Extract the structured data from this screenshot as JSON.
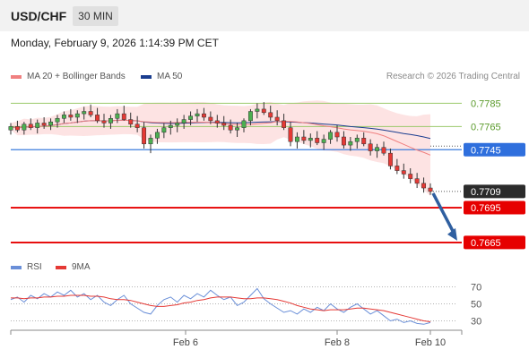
{
  "header": {
    "symbol": "USD/CHF",
    "timeframe": "30 MIN",
    "datetime": "Monday, February 9, 2026 1:14:39 PM CET"
  },
  "legend": {
    "ma20": "MA 20 + Bollinger Bands",
    "ma50": "MA 50",
    "credit": "Research © 2026 Trading Central"
  },
  "colors": {
    "up": "#4caf50",
    "down": "#e53935",
    "ma20": "#f08080",
    "ma50": "#1a3d8f",
    "band": "#fde0e0",
    "blue_line": "#3b7ddd",
    "red_line": "#e60000",
    "arrow": "#2f5fa0",
    "rsi": "#6a8fd8",
    "rsi_ma": "#e53935"
  },
  "chart_data": {
    "type": "candlestick",
    "ylim": [
      0.7658,
      0.78
    ],
    "levels": [
      {
        "value": "0.7785",
        "kind": "resistance"
      },
      {
        "value": "0.7765",
        "kind": "resistance"
      },
      {
        "value": "0.7745",
        "kind": "pivot"
      },
      {
        "value": "0.7709",
        "kind": "last"
      },
      {
        "value": "0.7695",
        "kind": "support"
      },
      {
        "value": "0.7665",
        "kind": "support"
      }
    ],
    "x_ticks": [
      "Feb 6",
      "Feb 8",
      "Feb 10"
    ],
    "candles": [
      [
        0.7762,
        0.7768,
        0.7758,
        0.7765
      ],
      [
        0.7765,
        0.777,
        0.776,
        0.7762
      ],
      [
        0.7762,
        0.7769,
        0.7758,
        0.7767
      ],
      [
        0.7767,
        0.7772,
        0.7762,
        0.7764
      ],
      [
        0.7764,
        0.7771,
        0.7759,
        0.7768
      ],
      [
        0.7768,
        0.7773,
        0.7763,
        0.7766
      ],
      [
        0.7766,
        0.7772,
        0.7762,
        0.7769
      ],
      [
        0.7769,
        0.7775,
        0.7764,
        0.7772
      ],
      [
        0.7772,
        0.7778,
        0.7768,
        0.7775
      ],
      [
        0.7775,
        0.778,
        0.777,
        0.7773
      ],
      [
        0.7773,
        0.7779,
        0.7768,
        0.7776
      ],
      [
        0.7776,
        0.7782,
        0.7771,
        0.7778
      ],
      [
        0.7778,
        0.7784,
        0.7773,
        0.7775
      ],
      [
        0.7775,
        0.7781,
        0.7768,
        0.777
      ],
      [
        0.777,
        0.7776,
        0.7764,
        0.7768
      ],
      [
        0.7768,
        0.7775,
        0.7763,
        0.7772
      ],
      [
        0.7772,
        0.778,
        0.7768,
        0.7776
      ],
      [
        0.7776,
        0.7783,
        0.777,
        0.7771
      ],
      [
        0.7771,
        0.7777,
        0.7764,
        0.7767
      ],
      [
        0.7767,
        0.7774,
        0.776,
        0.7764
      ],
      [
        0.7764,
        0.7769,
        0.7746,
        0.775
      ],
      [
        0.775,
        0.7758,
        0.7742,
        0.7755
      ],
      [
        0.7755,
        0.7763,
        0.775,
        0.776
      ],
      [
        0.776,
        0.7768,
        0.7755,
        0.7764
      ],
      [
        0.7764,
        0.777,
        0.7758,
        0.7766
      ],
      [
        0.7766,
        0.7772,
        0.776,
        0.7768
      ],
      [
        0.7768,
        0.7775,
        0.7763,
        0.7771
      ],
      [
        0.7771,
        0.7778,
        0.7766,
        0.7774
      ],
      [
        0.7774,
        0.778,
        0.7769,
        0.7776
      ],
      [
        0.7776,
        0.7781,
        0.777,
        0.7773
      ],
      [
        0.7773,
        0.7778,
        0.7767,
        0.777
      ],
      [
        0.777,
        0.7775,
        0.7764,
        0.7768
      ],
      [
        0.7768,
        0.7774,
        0.7762,
        0.7766
      ],
      [
        0.7766,
        0.7771,
        0.7759,
        0.7762
      ],
      [
        0.7762,
        0.7768,
        0.7756,
        0.7764
      ],
      [
        0.7764,
        0.7772,
        0.776,
        0.777
      ],
      [
        0.777,
        0.778,
        0.7766,
        0.7778
      ],
      [
        0.7778,
        0.7785,
        0.7772,
        0.778
      ],
      [
        0.778,
        0.7786,
        0.7775,
        0.7777
      ],
      [
        0.7777,
        0.7783,
        0.777,
        0.7773
      ],
      [
        0.7773,
        0.7779,
        0.7766,
        0.777
      ],
      [
        0.777,
        0.7776,
        0.7762,
        0.7764
      ],
      [
        0.7764,
        0.7769,
        0.7748,
        0.7752
      ],
      [
        0.7752,
        0.776,
        0.7746,
        0.7756
      ],
      [
        0.7756,
        0.7762,
        0.775,
        0.7753
      ],
      [
        0.7753,
        0.7759,
        0.7747,
        0.7755
      ],
      [
        0.7755,
        0.7761,
        0.7749,
        0.7751
      ],
      [
        0.7751,
        0.7758,
        0.7745,
        0.7754
      ],
      [
        0.7754,
        0.7762,
        0.775,
        0.776
      ],
      [
        0.776,
        0.7766,
        0.7752,
        0.7756
      ],
      [
        0.7756,
        0.7761,
        0.7746,
        0.7749
      ],
      [
        0.7749,
        0.7756,
        0.7744,
        0.7752
      ],
      [
        0.7752,
        0.7758,
        0.7746,
        0.7755
      ],
      [
        0.7755,
        0.776,
        0.7748,
        0.775
      ],
      [
        0.775,
        0.7754,
        0.774,
        0.7744
      ],
      [
        0.7744,
        0.775,
        0.7738,
        0.7747
      ],
      [
        0.7747,
        0.7752,
        0.774,
        0.7742
      ],
      [
        0.7742,
        0.7746,
        0.7728,
        0.7731
      ],
      [
        0.7731,
        0.7737,
        0.7724,
        0.7727
      ],
      [
        0.7727,
        0.7733,
        0.772,
        0.7724
      ],
      [
        0.7724,
        0.7729,
        0.7716,
        0.772
      ],
      [
        0.772,
        0.7725,
        0.7712,
        0.7716
      ],
      [
        0.7716,
        0.7721,
        0.7708,
        0.7712
      ],
      [
        0.7712,
        0.7716,
        0.7706,
        0.7709
      ]
    ],
    "rsi": {
      "legend": [
        "RSI",
        "9MA"
      ],
      "ylim": [
        20,
        80
      ],
      "ticks": [
        "70",
        "50",
        "30"
      ],
      "rsi_values": [
        55,
        58,
        52,
        60,
        56,
        62,
        58,
        64,
        60,
        66,
        58,
        62,
        55,
        60,
        52,
        48,
        55,
        60,
        50,
        45,
        40,
        38,
        48,
        55,
        58,
        52,
        60,
        56,
        62,
        58,
        66,
        60,
        55,
        58,
        48,
        52,
        60,
        68,
        56,
        50,
        45,
        40,
        42,
        38,
        44,
        40,
        46,
        42,
        50,
        44,
        40,
        46,
        50,
        44,
        38,
        42,
        36,
        30,
        32,
        28,
        30,
        27,
        26,
        28
      ],
      "ma_values": [
        57,
        57,
        56,
        57,
        57,
        58,
        58,
        59,
        59,
        60,
        60,
        60,
        59,
        59,
        58,
        56,
        55,
        55,
        54,
        52,
        50,
        48,
        47,
        47,
        48,
        49,
        51,
        52,
        54,
        55,
        57,
        58,
        58,
        58,
        57,
        56,
        56,
        57,
        57,
        56,
        55,
        53,
        51,
        48,
        46,
        44,
        43,
        42,
        43,
        43,
        43,
        44,
        45,
        45,
        44,
        43,
        42,
        40,
        38,
        36,
        34,
        32,
        30,
        29
      ]
    }
  }
}
